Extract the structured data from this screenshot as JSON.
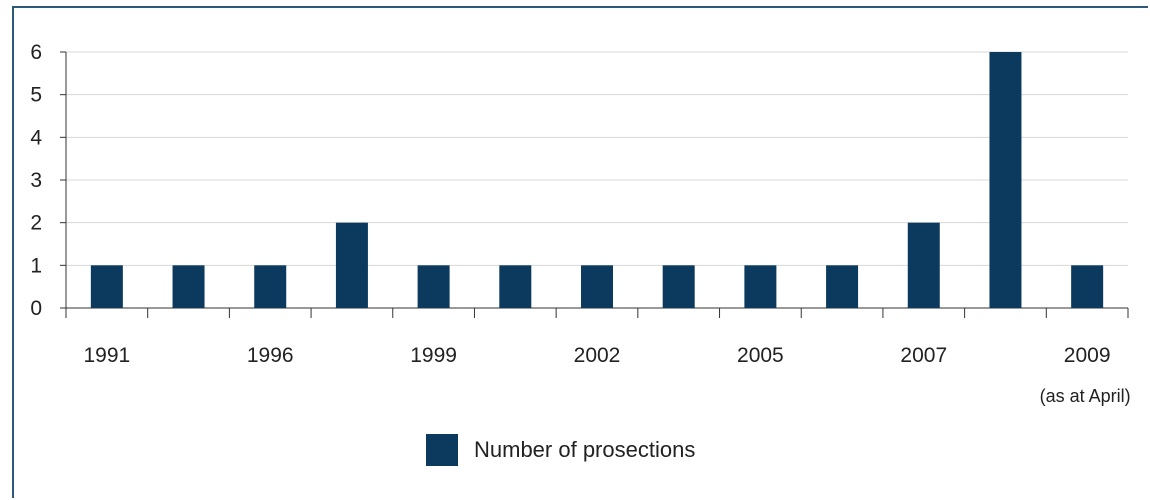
{
  "chart_data": {
    "type": "bar",
    "categories": [
      "1991",
      "",
      "1996",
      "",
      "1999",
      "",
      "2002",
      "",
      "2005",
      "",
      "2007",
      "",
      "2009"
    ],
    "category_sublabels": [
      "",
      "",
      "",
      "",
      "",
      "",
      "",
      "",
      "",
      "",
      "",
      "",
      "(as at April)"
    ],
    "series": [
      {
        "name": "Number of prosections",
        "values": [
          1,
          1,
          1,
          2,
          1,
          1,
          1,
          1,
          1,
          1,
          2,
          6,
          1
        ]
      }
    ],
    "ylim": [
      0,
      6
    ],
    "yticks": [
      0,
      1,
      2,
      3,
      4,
      5,
      6
    ],
    "ytick_labels": [
      "0",
      "1",
      "2",
      "3",
      "4",
      "5",
      "6"
    ],
    "grid": true,
    "legend_position": "bottom",
    "colors": {
      "bar": "#0b3a5e",
      "grid": "#d8d8d8",
      "axis": "#333333",
      "frame": "#2d5a78"
    }
  }
}
